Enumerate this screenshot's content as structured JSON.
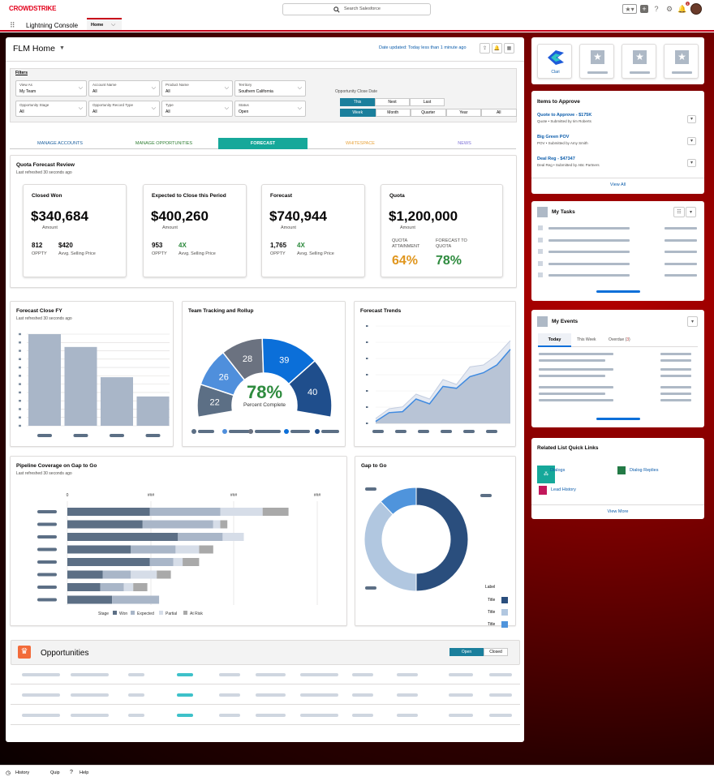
{
  "header": {
    "logo": "CROWDSTRIKE",
    "search_placeholder": "Search Salesforce",
    "notif_count": "1"
  },
  "nav": {
    "app_name": "Lightning Console",
    "tab": "Home"
  },
  "home": {
    "title": "FLM Home",
    "date_updated": "Date updated: Today less than 1 minute ago"
  },
  "filters": {
    "label": "Filters",
    "fields": [
      {
        "k": "View As",
        "v": "My Team"
      },
      {
        "k": "Account Name",
        "v": "All"
      },
      {
        "k": "Product Name",
        "v": "All"
      },
      {
        "k": "Territory",
        "v": "Southern California"
      },
      {
        "k": "Opportunity Stage",
        "v": "All"
      },
      {
        "k": "Opportunity Record Type",
        "v": "All"
      },
      {
        "k": "Type",
        "v": "All"
      },
      {
        "k": "Status",
        "v": "Open"
      }
    ],
    "close_date_label": "Opportunity Close Date",
    "period_row1": [
      "This",
      "Next",
      "Last"
    ],
    "period_row2": [
      "Week",
      "Month",
      "Quarter",
      "Year",
      "All"
    ]
  },
  "tabs": [
    {
      "label": "MANAGE ACCOUNTS",
      "color": "#1b5f9e"
    },
    {
      "label": "MANAGE OPPORTUNITIES",
      "color": "#2e7d32"
    },
    {
      "label": "FORECAST",
      "color": "#ffffff"
    },
    {
      "label": "WHITESPACE",
      "color": "#e8a33b"
    },
    {
      "label": "NEWS",
      "color": "#7b6fd6"
    }
  ],
  "quota": {
    "title": "Quota Forecast Review",
    "subtitle": "Last refreshed 30 seconds ago",
    "cards": [
      {
        "title": "Closed Won",
        "value": "$340,684",
        "amount": "Amount",
        "s1v": "812",
        "s1l": "OPPTY",
        "s2v": "$420",
        "s2l": "Avvg. Selling Price"
      },
      {
        "title": "Expected to Close this Period",
        "value": "$400,260",
        "amount": "Amount",
        "s1v": "953",
        "s1l": "OPPTY",
        "s2v": "4X",
        "s2l": "Avvg. Selling Price"
      },
      {
        "title": "Forecast",
        "value": "$740,944",
        "amount": "Amount",
        "s1v": "1,765",
        "s1l": "OPPTY",
        "s2v": "4X",
        "s2l": "Avvg. Selling Price"
      },
      {
        "title": "Quota",
        "value": "$1,200,000",
        "amount": "Amount",
        "s1v": "64%",
        "s1l": "QUOTA ATTAINMENT",
        "s2v": "78%",
        "s2l": "FORECAST TO QUOTA"
      }
    ]
  },
  "forecast_close": {
    "title": "Forecast Close FY",
    "subtitle": "Last refreshed 30 seconds ago"
  },
  "team": {
    "title": "Team Tracking and Rollup",
    "pct": "78%",
    "pct_label": "Percent Complete"
  },
  "trends": {
    "title": "Forecast Trends"
  },
  "pipeline": {
    "title": "Pipeline Coverage on Gap to Go",
    "subtitle": "Last refreshed 30 seconds ago",
    "legend_stage": "Stage",
    "legend": [
      "Won",
      "Expected",
      "Partial",
      "At Risk"
    ],
    "axis": [
      "0",
      "###",
      "###",
      "###"
    ]
  },
  "gap": {
    "title": "Gap to Go",
    "legend_label": "Label",
    "legend": [
      "Title",
      "Title",
      "Title"
    ]
  },
  "opps": {
    "title": "Opportunities",
    "open": "Open",
    "closed": "Closed"
  },
  "right": {
    "apps": [
      "Clari"
    ],
    "approve_title": "Items to Approve",
    "approvals": [
      {
        "title": "Quote to Approve - $175K",
        "sub": "Quote • Submitted by Iim Roberts"
      },
      {
        "title": "Big Green POV",
        "sub": "POV • Submitted by Amy Smith"
      },
      {
        "title": "Deal Reg - $47347",
        "sub": "Deal Reg • Submitted by ABc Partners"
      }
    ],
    "view_all": "View All",
    "tasks_title": "My Tasks",
    "events_title": "My Events",
    "events_tabs": [
      "Today",
      "This Week",
      "Overdue"
    ],
    "overdue_count": "3",
    "quick_title": "Related List Quick Links",
    "quick": [
      "Dialogs",
      "Dialog Replies",
      "Lead History"
    ],
    "view_more": "View More"
  },
  "footer": [
    "History",
    "Quip",
    "Help"
  ],
  "chart_data": [
    {
      "type": "bar",
      "title": "Forecast Close FY",
      "categories": [
        "",
        "",
        "",
        ""
      ],
      "values": [
        100,
        86,
        53,
        32
      ],
      "ylim": [
        0,
        100
      ]
    },
    {
      "type": "pie",
      "title": "Team Tracking and Rollup",
      "values": [
        22,
        26,
        28,
        39,
        40
      ],
      "colors": [
        "#5c6f85",
        "#4f8fdc",
        "#6b7280",
        "#0b6fd9",
        "#1f4e8c"
      ]
    },
    {
      "type": "area",
      "title": "Forecast Trends",
      "series": [
        {
          "values": [
            5,
            15,
            17,
            30,
            25,
            45,
            40,
            58,
            60,
            70,
            85
          ]
        },
        {
          "values": [
            2,
            11,
            12,
            25,
            20,
            38,
            36,
            48,
            52,
            60,
            76
          ]
        }
      ]
    },
    {
      "type": "bar",
      "title": "Pipeline Coverage on Gap to Go",
      "categories": [
        "",
        "",
        "",
        "",
        "",
        "",
        "",
        ""
      ],
      "series": [
        {
          "name": "Won",
          "values": [
            35,
            32,
            47,
            27,
            35,
            15,
            14,
            19
          ]
        },
        {
          "name": "Expected",
          "values": [
            30,
            30,
            19,
            19,
            10,
            12,
            10,
            20
          ]
        },
        {
          "name": "Partial",
          "values": [
            18,
            3,
            9,
            10,
            4,
            11,
            4,
            0
          ]
        },
        {
          "name": "At Risk",
          "values": [
            11,
            3,
            0,
            6,
            7,
            6,
            6,
            0
          ]
        }
      ]
    },
    {
      "type": "pie",
      "title": "Gap to Go",
      "values": [
        50,
        38,
        12
      ],
      "colors": [
        "#2a4e7d",
        "#b1c7e0",
        "#4f94dc"
      ]
    }
  ]
}
